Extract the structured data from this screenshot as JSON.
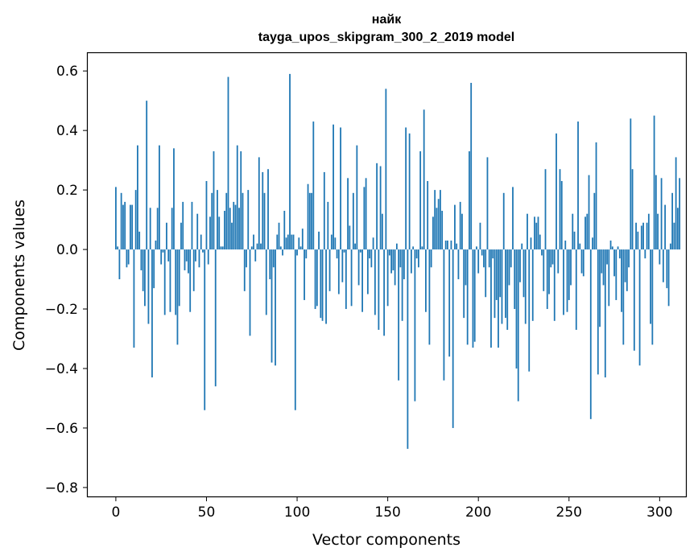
{
  "chart_data": {
    "type": "bar",
    "title": "найк",
    "subtitle": "tayga_upos_skipgram_300_2_2019 model",
    "xlabel": "Vector components",
    "ylabel": "Components values",
    "xlim": [
      -15.5,
      314.5
    ],
    "ylim": [
      -0.83,
      0.66
    ],
    "xticks": [
      0,
      50,
      100,
      150,
      200,
      250,
      300
    ],
    "xtick_labels": [
      "0",
      "50",
      "100",
      "150",
      "200",
      "250",
      "300"
    ],
    "yticks": [
      -0.8,
      -0.6,
      -0.4,
      -0.2,
      0.0,
      0.2,
      0.4,
      0.6
    ],
    "ytick_labels": [
      "−0.8",
      "−0.6",
      "−0.4",
      "−0.2",
      "0.0",
      "0.2",
      "0.4",
      "0.6"
    ],
    "grid": false,
    "bar_color": "#1f77b4",
    "x_start": 0,
    "values": [
      0.21,
      0.01,
      -0.1,
      0.19,
      0.15,
      0.16,
      -0.06,
      -0.05,
      0.15,
      0.15,
      -0.33,
      0.2,
      0.35,
      0.06,
      -0.07,
      -0.14,
      -0.19,
      0.5,
      -0.25,
      0.14,
      -0.43,
      -0.13,
      0.03,
      0.14,
      0.35,
      -0.05,
      -0.01,
      -0.22,
      0.09,
      -0.04,
      -0.21,
      0.14,
      0.34,
      -0.22,
      -0.32,
      -0.19,
      0.09,
      0.16,
      -0.07,
      -0.04,
      -0.08,
      -0.21,
      0.16,
      -0.14,
      -0.04,
      0.12,
      -0.06,
      0.05,
      -0.01,
      -0.54,
      0.23,
      -0.05,
      0.11,
      0.19,
      0.33,
      -0.46,
      0.2,
      0.11,
      0.01,
      0.01,
      0.13,
      0.19,
      0.58,
      0.14,
      0.09,
      0.16,
      0.15,
      0.35,
      0.14,
      0.33,
      0.19,
      -0.14,
      -0.06,
      0.2,
      -0.29,
      0.01,
      0.05,
      -0.04,
      0.02,
      0.31,
      0.02,
      0.26,
      0.19,
      -0.22,
      0.27,
      -0.1,
      -0.38,
      -0.06,
      -0.39,
      0.05,
      0.09,
      0.01,
      -0.02,
      0.13,
      0.04,
      0.05,
      0.59,
      0.05,
      0.05,
      -0.54,
      -0.02,
      0.04,
      0.01,
      0.07,
      -0.17,
      -0.03,
      0.22,
      0.19,
      0.19,
      0.43,
      -0.2,
      -0.19,
      0.06,
      -0.23,
      -0.24,
      0.26,
      -0.25,
      0.16,
      -0.14,
      0.05,
      0.42,
      0.04,
      -0.03,
      -0.15,
      0.41,
      -0.11,
      -0.01,
      -0.2,
      0.24,
      0.08,
      -0.19,
      0.19,
      0.02,
      0.35,
      -0.12,
      -0.01,
      -0.21,
      0.21,
      0.24,
      -0.15,
      -0.03,
      -0.06,
      0.04,
      -0.22,
      0.29,
      -0.27,
      0.28,
      0.12,
      -0.29,
      0.54,
      -0.19,
      -0.02,
      -0.08,
      -0.07,
      -0.12,
      0.02,
      -0.44,
      -0.06,
      -0.24,
      -0.1,
      0.41,
      -0.67,
      0.39,
      -0.08,
      0.01,
      -0.51,
      -0.03,
      -0.06,
      0.33,
      0.01,
      0.47,
      -0.21,
      0.23,
      -0.32,
      -0.06,
      0.11,
      0.2,
      0.14,
      0.17,
      0.2,
      0.13,
      -0.44,
      0.03,
      0.03,
      -0.36,
      0.03,
      -0.6,
      0.15,
      0.02,
      -0.1,
      0.16,
      0.12,
      -0.23,
      -0.12,
      -0.32,
      0.33,
      0.56,
      -0.33,
      -0.31,
      0.01,
      -0.08,
      0.09,
      -0.02,
      -0.06,
      -0.16,
      0.31,
      -0.06,
      -0.33,
      -0.03,
      -0.23,
      -0.17,
      -0.33,
      -0.16,
      -0.25,
      0.19,
      -0.23,
      -0.27,
      -0.12,
      -0.06,
      0.21,
      -0.2,
      -0.4,
      -0.51,
      -0.11,
      0.02,
      -0.16,
      -0.25,
      0.12,
      -0.41,
      0.04,
      -0.24,
      0.11,
      0.09,
      0.11,
      0.05,
      -0.02,
      -0.14,
      0.27,
      -0.2,
      -0.15,
      -0.06,
      -0.05,
      -0.24,
      0.39,
      -0.08,
      0.27,
      0.23,
      -0.22,
      0.03,
      -0.21,
      -0.17,
      -0.12,
      0.12,
      0.06,
      -0.27,
      0.43,
      0.02,
      -0.08,
      -0.09,
      0.11,
      0.12,
      0.25,
      -0.57,
      0.04,
      0.19,
      0.36,
      -0.42,
      -0.26,
      -0.08,
      -0.12,
      -0.43,
      -0.05,
      -0.19,
      0.03,
      0.01,
      -0.09,
      -0.17,
      0.01,
      -0.03,
      -0.21,
      -0.32,
      -0.11,
      -0.14,
      -0.06,
      0.44,
      0.27,
      -0.34,
      0.09,
      0.06,
      -0.39,
      0.08,
      0.09,
      -0.03,
      0.09,
      0.12,
      -0.25,
      -0.32,
      0.45,
      0.25,
      0.12,
      -0.05,
      0.24,
      -0.11,
      0.15,
      -0.13,
      -0.19,
      0.02,
      0.19,
      0.09,
      0.31,
      0.14,
      0.24
    ]
  }
}
